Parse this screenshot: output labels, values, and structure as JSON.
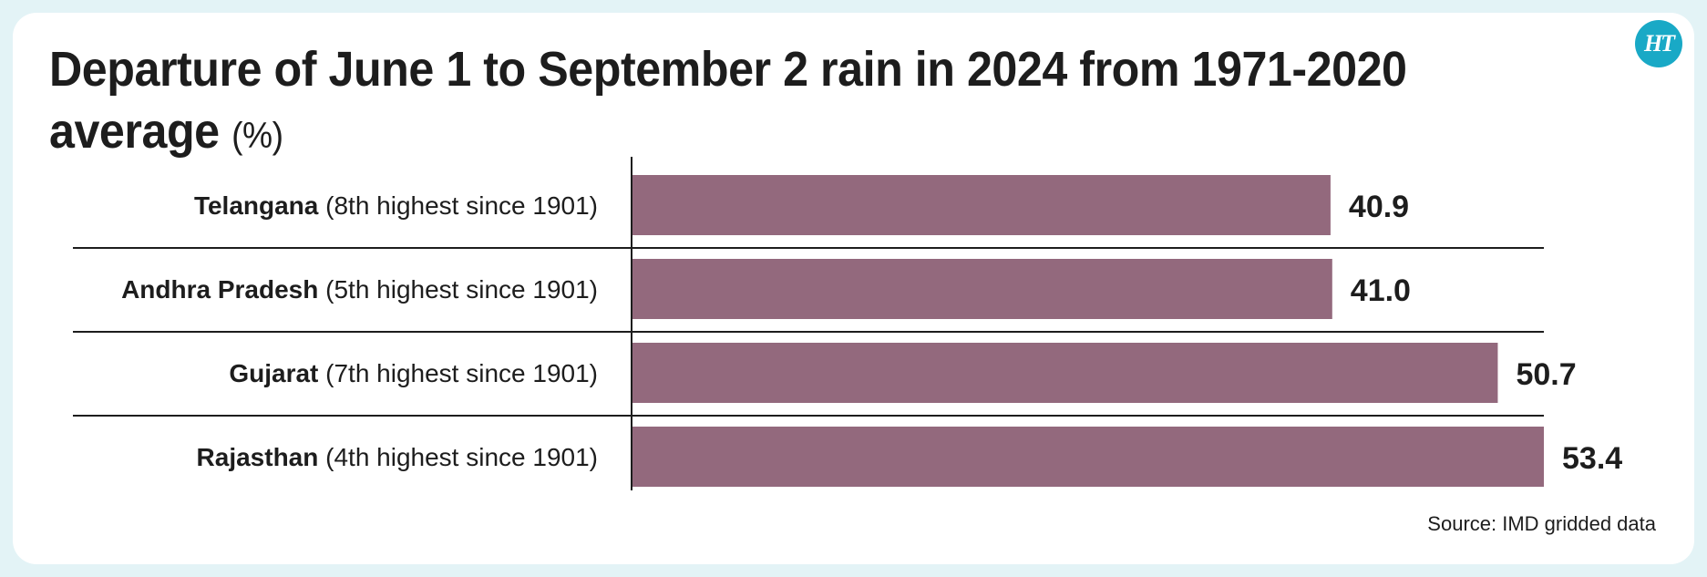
{
  "title": "Departure of June 1 to September 2 rain in 2024 from 1971-2020 average",
  "unit": "(%)",
  "logo": "HT",
  "source": "Source: IMD gridded data",
  "colors": {
    "bar": "#93697d",
    "background": "#e3f3f6",
    "logo": "#19a9c6"
  },
  "chart_data": {
    "type": "bar",
    "orientation": "horizontal",
    "title": "Departure of June 1 to September 2 rain in 2024 from 1971-2020 average",
    "unit": "(%)",
    "categories": [
      "Telangana",
      "Andhra Pradesh",
      "Gujarat",
      "Rajasthan"
    ],
    "notes": [
      "(8th highest since 1901)",
      "(5th highest since 1901)",
      "(7th highest since 1901)",
      "(4th highest since 1901)"
    ],
    "values": [
      40.9,
      41.0,
      50.7,
      53.4
    ],
    "value_labels": [
      "40.9",
      "41.0",
      "50.7",
      "53.4"
    ],
    "xlim": [
      0,
      53.4
    ],
    "grid": false,
    "legend": "none"
  }
}
